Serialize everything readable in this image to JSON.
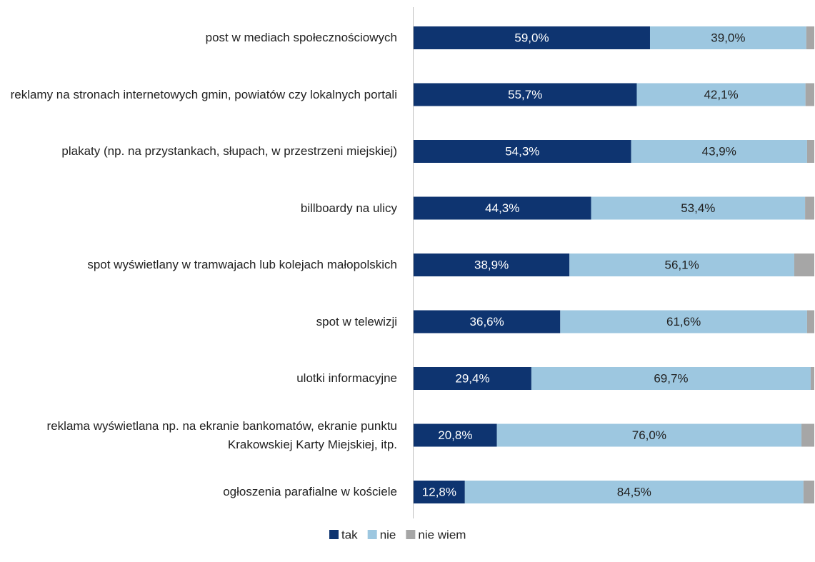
{
  "chart_data": {
    "type": "stacked-bar-horizontal",
    "categories": [
      "post w mediach społecznościowych",
      "reklamy na stronach internetowych gmin, powiatów czy lokalnych portali",
      "plakaty (np. na przystankach, słupach, w przestrzeni miejskiej)",
      "billboardy na ulicy",
      "spot wyświetlany w tramwajach lub kolejach małopolskich",
      "spot w telewizji",
      "ulotki informacyjne",
      "reklama wyświetlana np. na ekranie bankomatów, ekranie punktu Krakowskiej Karty Miejskiej, itp.",
      "ogłoszenia parafialne w kościele"
    ],
    "series": [
      {
        "name": "tak",
        "color": "#0e3470",
        "values": [
          59.0,
          55.7,
          54.3,
          44.3,
          38.9,
          36.6,
          29.4,
          20.8,
          12.8
        ],
        "value_labels": [
          "59,0%",
          "55,7%",
          "54,3%",
          "44,3%",
          "38,9%",
          "36,6%",
          "29,4%",
          "20,8%",
          "12,8%"
        ]
      },
      {
        "name": "nie",
        "color": "#9dc7e0",
        "values": [
          39.0,
          42.1,
          43.9,
          53.4,
          56.1,
          61.6,
          69.7,
          76.0,
          84.5
        ],
        "value_labels": [
          "39,0%",
          "42,1%",
          "43,9%",
          "53,4%",
          "56,1%",
          "61,6%",
          "69,7%",
          "76,0%",
          "84,5%"
        ]
      },
      {
        "name": "nie wiem",
        "color": "#a6a6a6",
        "values": [
          2.0,
          2.2,
          1.8,
          2.3,
          5.0,
          1.8,
          0.9,
          3.2,
          2.7
        ]
      }
    ],
    "xlim": [
      0,
      100
    ]
  }
}
